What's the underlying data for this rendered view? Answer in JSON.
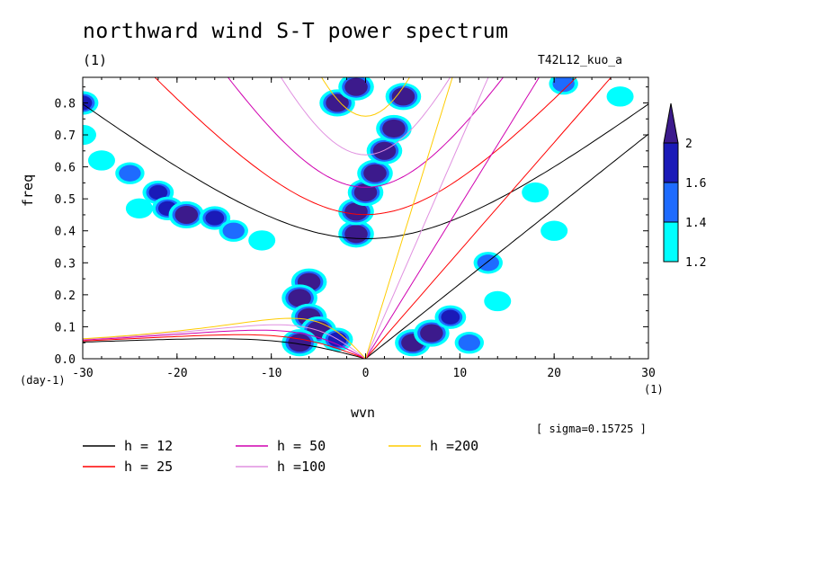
{
  "chart_data": {
    "type": "heatmap",
    "title": "northward wind S-T power spectrum",
    "subtitle_left": "(1)",
    "subtitle_right": "T42L12_kuo_a",
    "xlabel": "wvn",
    "ylabel": "freq",
    "x_unit": "(1)",
    "y_unit": "(day-1)",
    "xlim": [
      -30,
      30
    ],
    "ylim": [
      0.0,
      0.88
    ],
    "x_ticks": [
      "-30",
      "-20",
      "-10",
      "0",
      "10",
      "20",
      "30"
    ],
    "y_ticks": [
      "0.0",
      "0.1",
      "0.2",
      "0.3",
      "0.4",
      "0.5",
      "0.6",
      "0.7",
      "0.8"
    ],
    "annotation": "[ sigma=0.15725 ]",
    "colorbar": {
      "levels": [
        "1.2",
        "1.4",
        "1.6",
        "2"
      ],
      "colors": [
        "#00ffff",
        "#1e6bff",
        "#1a1ab8",
        "#3c1a8c"
      ]
    },
    "contours": [
      {
        "x": -30,
        "y": 0.8,
        "level": 1.6
      },
      {
        "x": -30,
        "y": 0.7,
        "level": 1.2
      },
      {
        "x": -28,
        "y": 0.62,
        "level": 1.2
      },
      {
        "x": -25,
        "y": 0.58,
        "level": 1.4
      },
      {
        "x": -22,
        "y": 0.52,
        "level": 1.6
      },
      {
        "x": -21,
        "y": 0.47,
        "level": 1.6
      },
      {
        "x": -19,
        "y": 0.45,
        "level": 2.0
      },
      {
        "x": -16,
        "y": 0.44,
        "level": 1.6
      },
      {
        "x": -14,
        "y": 0.4,
        "level": 1.4
      },
      {
        "x": -24,
        "y": 0.47,
        "level": 1.2
      },
      {
        "x": -11,
        "y": 0.37,
        "level": 1.2
      },
      {
        "x": -6,
        "y": 0.24,
        "level": 2.0
      },
      {
        "x": -7,
        "y": 0.19,
        "level": 2.0
      },
      {
        "x": -6,
        "y": 0.13,
        "level": 2.0
      },
      {
        "x": -5,
        "y": 0.09,
        "level": 2.0
      },
      {
        "x": -7,
        "y": 0.05,
        "level": 2.0
      },
      {
        "x": -3,
        "y": 0.06,
        "level": 1.6
      },
      {
        "x": -1,
        "y": 0.39,
        "level": 2.0
      },
      {
        "x": -1,
        "y": 0.46,
        "level": 2.0
      },
      {
        "x": 0,
        "y": 0.52,
        "level": 2.0
      },
      {
        "x": 1,
        "y": 0.58,
        "level": 2.0
      },
      {
        "x": 2,
        "y": 0.65,
        "level": 2.0
      },
      {
        "x": 3,
        "y": 0.72,
        "level": 2.0
      },
      {
        "x": 4,
        "y": 0.82,
        "level": 2.0
      },
      {
        "x": -3,
        "y": 0.8,
        "level": 2.0
      },
      {
        "x": -1,
        "y": 0.85,
        "level": 2.0
      },
      {
        "x": 5,
        "y": 0.05,
        "level": 2.0
      },
      {
        "x": 7,
        "y": 0.08,
        "level": 2.0
      },
      {
        "x": 9,
        "y": 0.13,
        "level": 1.6
      },
      {
        "x": 11,
        "y": 0.05,
        "level": 1.4
      },
      {
        "x": 13,
        "y": 0.3,
        "level": 1.4
      },
      {
        "x": 14,
        "y": 0.18,
        "level": 1.2
      },
      {
        "x": 20,
        "y": 0.4,
        "level": 1.2
      },
      {
        "x": 18,
        "y": 0.52,
        "level": 1.2
      },
      {
        "x": 21,
        "y": 0.86,
        "level": 1.4
      },
      {
        "x": 27,
        "y": 0.82,
        "level": 1.2
      }
    ],
    "dispersion_curves": [
      {
        "name": "h = 12",
        "h": 12,
        "color": "#000000"
      },
      {
        "name": "h = 25",
        "h": 25,
        "color": "#ff0000"
      },
      {
        "name": "h = 50",
        "h": 50,
        "color": "#d000b0"
      },
      {
        "name": "h =100",
        "h": 100,
        "color": "#e090e0"
      },
      {
        "name": "h =200",
        "h": 200,
        "color": "#ffcc00"
      }
    ]
  }
}
